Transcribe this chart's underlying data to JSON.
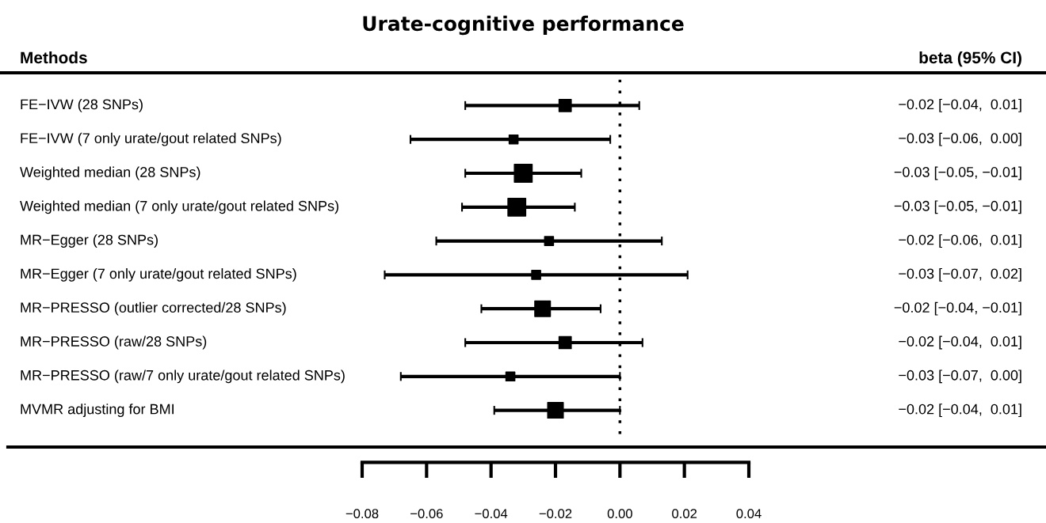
{
  "chart_data": {
    "type": "scatter",
    "title": "Urate-cognitive performance",
    "orientation": "horizontal",
    "annotations": [
      "Methods",
      "beta (95% CI)"
    ],
    "categories": [
      "FE−IVW (28 SNPs)",
      "FE−IVW (7 only urate/gout related SNPs)",
      "Weighted median (28 SNPs)",
      "Weighted median (7 only urate/gout related SNPs)",
      "MR−Egger (28 SNPs)",
      "MR−Egger (7 only urate/gout related SNPs)",
      "MR−PRESSO (outlier corrected/28 SNPs)",
      "MR−PRESSO (raw/28 SNPs)",
      "MR−PRESSO (raw/7 only urate/gout related SNPs)",
      "MVMR adjusting for BMI"
    ],
    "values": [
      -0.017,
      -0.033,
      -0.03,
      -0.032,
      -0.022,
      -0.026,
      -0.024,
      -0.017,
      -0.034,
      -0.02
    ],
    "errors": [
      [
        -0.048,
        0.006
      ],
      [
        -0.065,
        -0.003
      ],
      [
        -0.048,
        -0.012
      ],
      [
        -0.049,
        -0.014
      ],
      [
        -0.057,
        0.013
      ],
      [
        -0.073,
        0.021
      ],
      [
        -0.043,
        -0.006
      ],
      [
        -0.048,
        0.007
      ],
      [
        -0.068,
        0.0
      ],
      [
        -0.039,
        0.0
      ]
    ],
    "sizes": [
      0.47,
      0.25,
      1,
      1,
      0.25,
      0.25,
      0.77,
      0.47,
      0.25,
      0.77
    ],
    "value_labels": [
      "−0.02 [−0.04,  0.01]",
      "−0.03 [−0.06,  0.00]",
      "−0.03 [−0.05, −0.01]",
      "−0.03 [−0.05, −0.01]",
      "−0.02 [−0.06,  0.01]",
      "−0.03 [−0.07,  0.02]",
      "−0.02 [−0.04, −0.01]",
      "−0.02 [−0.04,  0.01]",
      "−0.03 [−0.07,  0.00]",
      "−0.02 [−0.04,  0.01]"
    ],
    "color": "#000000",
    "marker": "square",
    "xlim": [
      -0.08,
      0.04
    ],
    "xticks": [
      {
        "value": -0.08,
        "label": "−0.08"
      },
      {
        "value": -0.06,
        "label": "−0.06"
      },
      {
        "value": -0.04,
        "label": "−0.04"
      },
      {
        "value": -0.02,
        "label": "−0.02"
      },
      {
        "value": 0,
        "label": "0.00"
      },
      {
        "value": 0.02,
        "label": "0.02"
      },
      {
        "value": 0.04,
        "label": "0.04"
      }
    ],
    "ref_lines": [
      {
        "axis": "x",
        "value": 0,
        "line_style": "dotted",
        "color": "#000000"
      }
    ],
    "grid": false
  }
}
